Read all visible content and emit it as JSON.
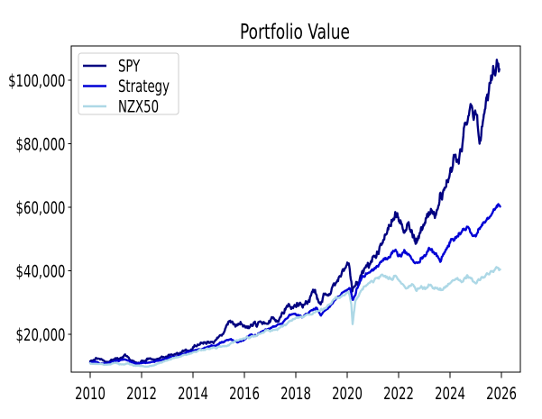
{
  "title": "Portfolio Value",
  "chart_data": {
    "type": "line",
    "title": "Portfolio Value",
    "xlabel": "",
    "ylabel": "",
    "grid": false,
    "legend_position": "upper left",
    "xlim": [
      2009.263,
      2026.737
    ],
    "ylim": [
      8085,
      110785
    ],
    "x_ticks": [
      2010,
      2012,
      2014,
      2016,
      2018,
      2020,
      2022,
      2024,
      2026
    ],
    "y_ticks": [
      {
        "value": 20000,
        "label": "$20,000"
      },
      {
        "value": 40000,
        "label": "$40,000"
      },
      {
        "value": 60000,
        "label": "$60,000"
      },
      {
        "value": 80000,
        "label": "$80,000"
      },
      {
        "value": 100000,
        "label": "$100,000"
      }
    ],
    "series": [
      {
        "name": "SPY",
        "color": "#000080",
        "volatility": 0.013,
        "anchors": [
          [
            2010.0,
            11500
          ],
          [
            2010.35,
            12300
          ],
          [
            2010.6,
            11200
          ],
          [
            2011.0,
            12200
          ],
          [
            2011.3,
            13100
          ],
          [
            2011.75,
            11200
          ],
          [
            2012.0,
            11700
          ],
          [
            2012.3,
            12300
          ],
          [
            2012.55,
            11900
          ],
          [
            2013.0,
            12900
          ],
          [
            2013.5,
            14200
          ],
          [
            2014.0,
            15900
          ],
          [
            2014.5,
            17200
          ],
          [
            2014.9,
            18300
          ],
          [
            2015.1,
            19600
          ],
          [
            2015.45,
            24300
          ],
          [
            2015.65,
            22400
          ],
          [
            2015.85,
            23900
          ],
          [
            2016.1,
            22200
          ],
          [
            2016.35,
            23400
          ],
          [
            2016.6,
            24000
          ],
          [
            2016.85,
            23400
          ],
          [
            2017.1,
            25300
          ],
          [
            2017.45,
            26600
          ],
          [
            2017.8,
            28600
          ],
          [
            2018.05,
            29900
          ],
          [
            2018.25,
            28700
          ],
          [
            2018.55,
            31500
          ],
          [
            2018.75,
            34000
          ],
          [
            2018.95,
            29600
          ],
          [
            2019.2,
            32500
          ],
          [
            2019.5,
            35500
          ],
          [
            2019.85,
            40500
          ],
          [
            2020.08,
            41500
          ],
          [
            2020.2,
            33500
          ],
          [
            2020.35,
            36500
          ],
          [
            2020.6,
            40000
          ],
          [
            2020.8,
            42500
          ],
          [
            2021.0,
            44500
          ],
          [
            2021.3,
            48500
          ],
          [
            2021.6,
            53000
          ],
          [
            2021.87,
            58500
          ],
          [
            2022.05,
            55000
          ],
          [
            2022.2,
            52000
          ],
          [
            2022.35,
            55000
          ],
          [
            2022.55,
            50500
          ],
          [
            2022.7,
            48800
          ],
          [
            2022.85,
            52000
          ],
          [
            2023.0,
            54500
          ],
          [
            2023.15,
            57000
          ],
          [
            2023.3,
            59000
          ],
          [
            2023.45,
            57500
          ],
          [
            2023.65,
            63500
          ],
          [
            2023.85,
            66500
          ],
          [
            2024.0,
            71000
          ],
          [
            2024.15,
            76500
          ],
          [
            2024.3,
            75000
          ],
          [
            2024.5,
            81000
          ],
          [
            2024.65,
            86000
          ],
          [
            2024.8,
            92500
          ],
          [
            2024.92,
            87500
          ],
          [
            2025.0,
            89500
          ],
          [
            2025.15,
            80000
          ],
          [
            2025.3,
            88000
          ],
          [
            2025.45,
            95500
          ],
          [
            2025.6,
            101500
          ],
          [
            2025.68,
            104500
          ],
          [
            2025.76,
            101500
          ],
          [
            2025.84,
            105500
          ],
          [
            2025.92,
            103500
          ]
        ]
      },
      {
        "name": "Strategy",
        "color": "#0000d5",
        "volatility": 0.007,
        "anchors": [
          [
            2010.0,
            11100
          ],
          [
            2010.5,
            10800
          ],
          [
            2011.0,
            11600
          ],
          [
            2011.4,
            12000
          ],
          [
            2011.75,
            10700
          ],
          [
            2012.0,
            10900
          ],
          [
            2012.5,
            11300
          ],
          [
            2013.0,
            12300
          ],
          [
            2013.5,
            13400
          ],
          [
            2014.0,
            14800
          ],
          [
            2014.5,
            15800
          ],
          [
            2015.0,
            16800
          ],
          [
            2015.4,
            18300
          ],
          [
            2015.7,
            17600
          ],
          [
            2016.0,
            18400
          ],
          [
            2016.5,
            19700
          ],
          [
            2017.0,
            21800
          ],
          [
            2017.5,
            23800
          ],
          [
            2018.0,
            26300
          ],
          [
            2018.3,
            25500
          ],
          [
            2018.6,
            27500
          ],
          [
            2018.82,
            28300
          ],
          [
            2018.98,
            25900
          ],
          [
            2019.3,
            28500
          ],
          [
            2019.6,
            31500
          ],
          [
            2019.9,
            33500
          ],
          [
            2020.1,
            34500
          ],
          [
            2020.22,
            30800
          ],
          [
            2020.38,
            34500
          ],
          [
            2020.55,
            37500
          ],
          [
            2020.75,
            39000
          ],
          [
            2020.95,
            40300
          ],
          [
            2021.15,
            41500
          ],
          [
            2021.4,
            43200
          ],
          [
            2021.65,
            44200
          ],
          [
            2021.9,
            46200
          ],
          [
            2022.1,
            44500
          ],
          [
            2022.3,
            45800
          ],
          [
            2022.5,
            43800
          ],
          [
            2022.7,
            42600
          ],
          [
            2022.9,
            44200
          ],
          [
            2023.1,
            45800
          ],
          [
            2023.3,
            46800
          ],
          [
            2023.5,
            44800
          ],
          [
            2023.62,
            42800
          ],
          [
            2023.8,
            45800
          ],
          [
            2024.0,
            48800
          ],
          [
            2024.2,
            50500
          ],
          [
            2024.42,
            51800
          ],
          [
            2024.6,
            52800
          ],
          [
            2024.8,
            52000
          ],
          [
            2025.0,
            50800
          ],
          [
            2025.2,
            53800
          ],
          [
            2025.4,
            55800
          ],
          [
            2025.6,
            57500
          ],
          [
            2025.78,
            59800
          ],
          [
            2025.88,
            61000
          ],
          [
            2025.95,
            60200
          ]
        ]
      },
      {
        "name": "NZX50",
        "color": "#add8e6",
        "volatility": 0.006,
        "anchors": [
          [
            2010.0,
            10900
          ],
          [
            2010.5,
            10500
          ],
          [
            2011.0,
            11000
          ],
          [
            2011.5,
            10800
          ],
          [
            2011.85,
            10100
          ],
          [
            2012.15,
            9800
          ],
          [
            2012.5,
            10300
          ],
          [
            2013.0,
            11800
          ],
          [
            2013.5,
            13000
          ],
          [
            2014.0,
            14300
          ],
          [
            2014.5,
            15300
          ],
          [
            2015.0,
            16100
          ],
          [
            2015.5,
            17300
          ],
          [
            2016.0,
            18600
          ],
          [
            2016.5,
            19800
          ],
          [
            2017.0,
            20900
          ],
          [
            2017.5,
            22500
          ],
          [
            2018.0,
            25100
          ],
          [
            2018.4,
            26100
          ],
          [
            2018.75,
            26900
          ],
          [
            2019.05,
            27600
          ],
          [
            2019.4,
            30000
          ],
          [
            2019.75,
            31800
          ],
          [
            2020.05,
            33300
          ],
          [
            2020.16,
            29500
          ],
          [
            2020.21,
            23200
          ],
          [
            2020.32,
            30500
          ],
          [
            2020.55,
            33800
          ],
          [
            2020.8,
            35800
          ],
          [
            2021.05,
            37000
          ],
          [
            2021.35,
            38800
          ],
          [
            2021.6,
            37400
          ],
          [
            2021.9,
            38300
          ],
          [
            2022.1,
            36000
          ],
          [
            2022.3,
            34400
          ],
          [
            2022.5,
            35600
          ],
          [
            2022.68,
            33800
          ],
          [
            2022.88,
            35200
          ],
          [
            2023.05,
            34400
          ],
          [
            2023.25,
            35600
          ],
          [
            2023.45,
            34600
          ],
          [
            2023.65,
            33900
          ],
          [
            2023.85,
            35200
          ],
          [
            2024.05,
            36400
          ],
          [
            2024.25,
            37400
          ],
          [
            2024.45,
            36400
          ],
          [
            2024.65,
            38400
          ],
          [
            2024.85,
            37600
          ],
          [
            2025.05,
            36400
          ],
          [
            2025.25,
            38000
          ],
          [
            2025.45,
            39200
          ],
          [
            2025.65,
            39900
          ],
          [
            2025.85,
            40900
          ],
          [
            2025.95,
            40400
          ]
        ]
      }
    ]
  }
}
